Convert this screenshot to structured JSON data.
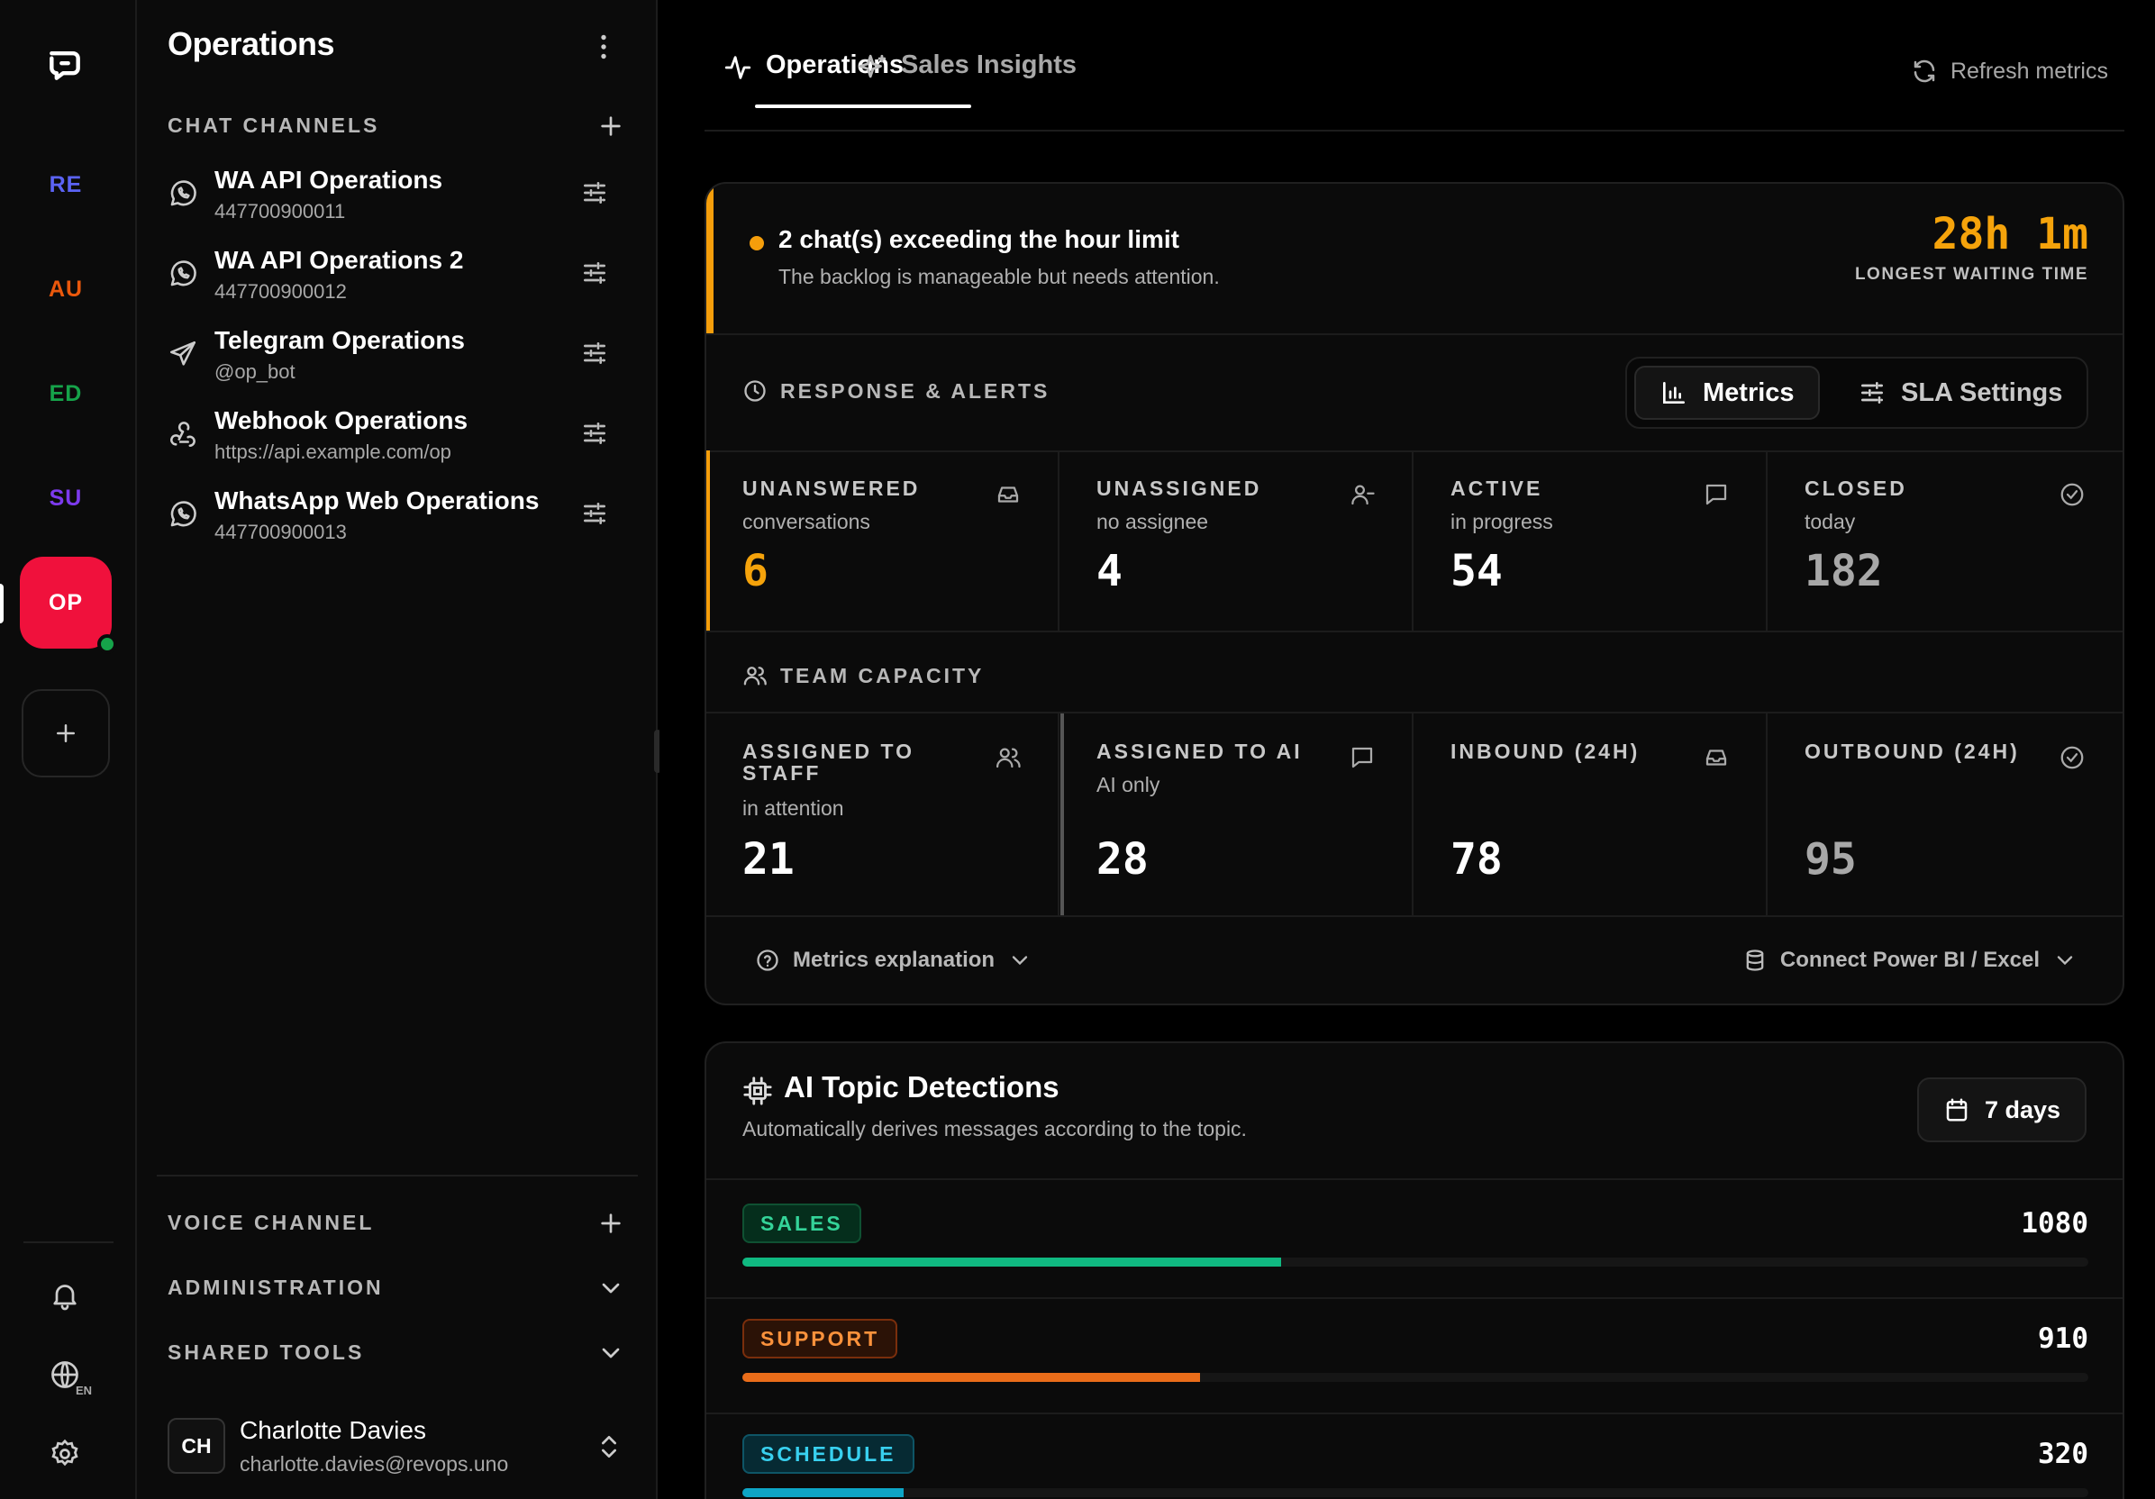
{
  "rail": {
    "workspaces": [
      {
        "code": "RE",
        "color": "#5b63f5"
      },
      {
        "code": "AU",
        "color": "#ea580c"
      },
      {
        "code": "ED",
        "color": "#16a34a"
      },
      {
        "code": "SU",
        "color": "#7c3aed"
      },
      {
        "code": "OP",
        "color": "#ffffff",
        "active": true,
        "bg": "#f0113c"
      }
    ],
    "lang": "EN"
  },
  "sidebar": {
    "title": "Operations",
    "chat_header": "CHAT CHANNELS",
    "channels": [
      {
        "name": "WA API Operations",
        "sub": "447700900011",
        "icon": "whatsapp-icon"
      },
      {
        "name": "WA API Operations 2",
        "sub": "447700900012",
        "icon": "whatsapp-icon"
      },
      {
        "name": "Telegram Operations",
        "sub": "@op_bot",
        "icon": "telegram-icon"
      },
      {
        "name": "Webhook Operations",
        "sub": "https://api.example.com/op",
        "icon": "webhook-icon"
      },
      {
        "name": "WhatsApp Web Operations",
        "sub": "447700900013",
        "icon": "whatsapp-icon"
      }
    ],
    "voice_header": "VOICE CHANNEL",
    "admin_header": "ADMINISTRATION",
    "tools_header": "SHARED TOOLS",
    "user": {
      "initials": "CH",
      "name": "Charlotte Davies",
      "email": "charlotte.davies@revops.uno"
    }
  },
  "main": {
    "tabs": [
      {
        "label": "Operations",
        "active": true
      },
      {
        "label": "Sales Insights",
        "active": false
      }
    ],
    "refresh_label": "Refresh metrics",
    "alert": {
      "title": "2 chat(s) exceeding the hour limit",
      "subtitle": "The backlog is manageable but needs attention.",
      "wait_value": "28h 1m",
      "wait_label": "LONGEST WAITING TIME"
    },
    "response_header": "RESPONSE & ALERTS",
    "segment": {
      "metrics": "Metrics",
      "sla": "SLA Settings"
    },
    "response_tiles": [
      {
        "label": "UNANSWERED",
        "sub": "conversations",
        "value": "6",
        "color": "#f5a30b"
      },
      {
        "label": "UNASSIGNED",
        "sub": "no assignee",
        "value": "4",
        "color": "#ffffff"
      },
      {
        "label": "ACTIVE",
        "sub": "in progress",
        "value": "54",
        "color": "#ffffff"
      },
      {
        "label": "CLOSED",
        "sub": "today",
        "value": "182",
        "color": "#a8a8a8"
      }
    ],
    "team_header": "TEAM CAPACITY",
    "team_tiles": [
      {
        "label": "ASSIGNED TO STAFF",
        "sub": "in attention",
        "value": "21",
        "color": "#ffffff"
      },
      {
        "label": "ASSIGNED TO AI",
        "sub": "AI only",
        "value": "28",
        "color": "#ffffff"
      },
      {
        "label": "INBOUND (24H)",
        "sub": "",
        "value": "78",
        "color": "#ffffff"
      },
      {
        "label": "OUTBOUND (24H)",
        "sub": "",
        "value": "95",
        "color": "#a8a8a8"
      }
    ],
    "metrics_explanation": "Metrics explanation",
    "connect_bi": "Connect Power BI / Excel",
    "topics": {
      "title": "AI Topic Detections",
      "subtitle": "Automatically derives messages according to the topic.",
      "range": "7 days",
      "items": [
        {
          "tag": "SALES",
          "count": "1080",
          "share": 0.4,
          "color": "#10b981",
          "tag_bg": "#052e1c",
          "tag_border": "#0f5132",
          "tag_fg": "#34d399"
        },
        {
          "tag": "SUPPORT",
          "count": "910",
          "share": 0.34,
          "color": "#ea6d1a",
          "tag_bg": "#2b1206",
          "tag_border": "#7a2e0c",
          "tag_fg": "#fb923c"
        },
        {
          "tag": "SCHEDULE",
          "count": "320",
          "share": 0.12,
          "color": "#0ea5c6",
          "tag_bg": "#062a33",
          "tag_border": "#0e5566",
          "tag_fg": "#38d0ef"
        }
      ]
    }
  }
}
